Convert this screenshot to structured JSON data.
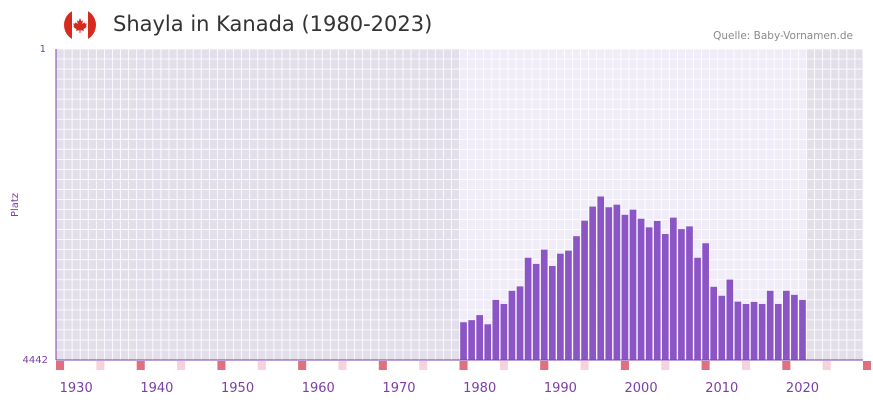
{
  "header": {
    "title": "Shayla in Kanada (1980-2023)",
    "source": "Quelle: Baby-Vornamen.de"
  },
  "icons": {
    "flag": "canada-flag-icon"
  },
  "colors": {
    "bar": "#8c55c6",
    "grid_bg_outer": "#e2dfeb",
    "grid_bg_inner": "#f0ecf8",
    "axis": "#7a3fa8",
    "label": "#7b3fa6",
    "decade_marker": "#e07080",
    "half_decade_marker": "#f6d3dc",
    "flag_red": "#d52b1e"
  },
  "chart_data": {
    "type": "bar",
    "title": "Shayla in Kanada (1980-2023)",
    "xlabel": "",
    "ylabel": "Platz",
    "y_axis_inverted": true,
    "ylim": [
      1,
      4442
    ],
    "y_ticks": [
      "1",
      "4442"
    ],
    "x_range": [
      1928,
      2028
    ],
    "x_ticks": [
      "1930",
      "1940",
      "1950",
      "1960",
      "1970",
      "1980",
      "1990",
      "2000",
      "2010",
      "2020"
    ],
    "years": [
      1978,
      1979,
      1980,
      1981,
      1982,
      1983,
      1984,
      1985,
      1986,
      1987,
      1988,
      1989,
      1990,
      1991,
      1992,
      1993,
      1994,
      1995,
      1996,
      1997,
      1998,
      1999,
      2000,
      2001,
      2002,
      2003,
      2004,
      2005,
      2006,
      2007,
      2008,
      2009,
      2010,
      2011,
      2012,
      2013,
      2014,
      2015,
      2016,
      2017,
      2018,
      2019,
      2020
    ],
    "ranks": [
      3903,
      3873,
      3801,
      3932,
      3584,
      3642,
      3454,
      3391,
      2982,
      3070,
      2866,
      3100,
      2924,
      2880,
      2674,
      2453,
      2251,
      2107,
      2261,
      2224,
      2369,
      2295,
      2425,
      2548,
      2457,
      2643,
      2409,
      2573,
      2534,
      2982,
      2775,
      3397,
      3525,
      3294,
      3609,
      3642,
      3613,
      3642,
      3454,
      3642,
      3454,
      3512,
      3584
    ]
  }
}
